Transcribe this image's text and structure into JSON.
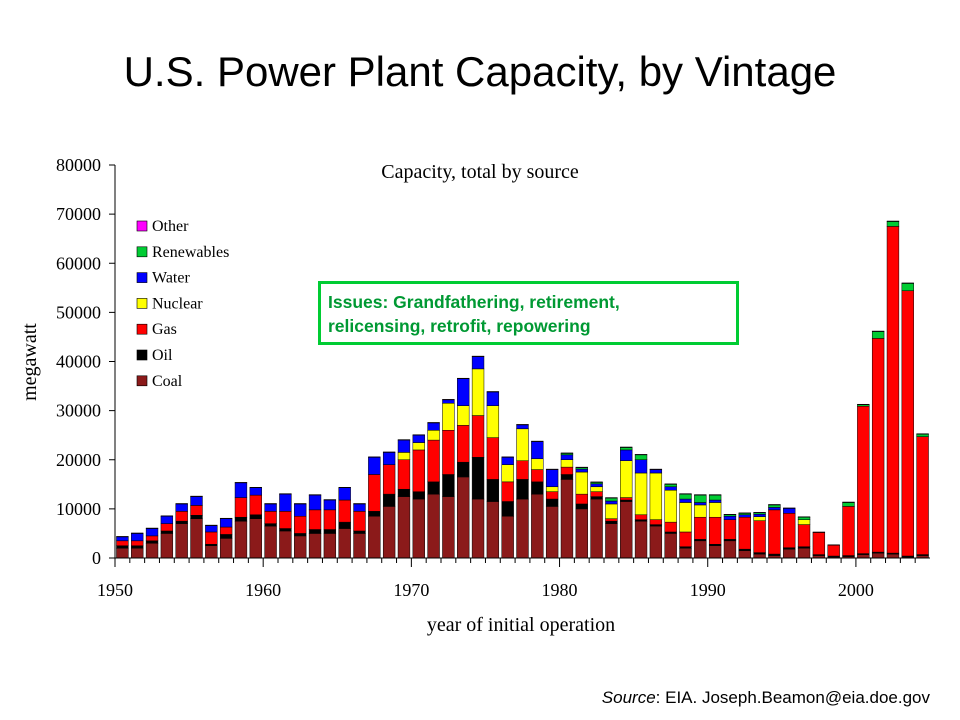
{
  "slide": {
    "title": "U.S. Power Plant Capacity, by Vintage",
    "source_label": "Source",
    "source_text": ": EIA. Joseph.Beamon@eia.doe.gov",
    "callout": [
      "Issues: Grandfathering, retirement,",
      "relicensing, retrofit, repowering"
    ]
  },
  "chart_data": {
    "type": "bar",
    "stacked": true,
    "title": "Capacity, total by source",
    "xlabel": "year of initial operation",
    "ylabel": "megawatt",
    "ylim": [
      0,
      80000
    ],
    "yticks": [
      0,
      10000,
      20000,
      30000,
      40000,
      50000,
      60000,
      70000,
      80000
    ],
    "xticks": [
      1950,
      1960,
      1970,
      1980,
      1990,
      2000
    ],
    "grid": false,
    "legend": "top-left",
    "x": [
      1950,
      1951,
      1952,
      1953,
      1954,
      1955,
      1956,
      1957,
      1958,
      1959,
      1960,
      1961,
      1962,
      1963,
      1964,
      1965,
      1966,
      1967,
      1968,
      1969,
      1970,
      1971,
      1972,
      1973,
      1974,
      1975,
      1976,
      1977,
      1978,
      1979,
      1980,
      1981,
      1982,
      1983,
      1984,
      1985,
      1986,
      1987,
      1988,
      1989,
      1990,
      1991,
      1992,
      1993,
      1994,
      1995,
      1996,
      1997,
      1998,
      1999,
      2000,
      2001,
      2002,
      2003,
      2004
    ],
    "series": [
      {
        "name": "Coal",
        "color": "#8b1a1a",
        "values": [
          2000,
          2000,
          3000,
          5000,
          7000,
          8000,
          2500,
          4000,
          7500,
          8000,
          6500,
          5500,
          4500,
          5000,
          5000,
          6000,
          5000,
          8500,
          10500,
          12500,
          12000,
          13000,
          12500,
          16500,
          12000,
          11500,
          8500,
          12000,
          13000,
          10500,
          16000,
          10000,
          12000,
          7000,
          11500,
          7500,
          6500,
          5000,
          2000,
          3500,
          2500,
          3500,
          1500,
          800,
          500,
          1800,
          2000,
          500,
          200,
          300,
          700,
          1000,
          800,
          200,
          500
        ]
      },
      {
        "name": "Oil",
        "color": "#000000",
        "values": [
          500,
          500,
          500,
          500,
          500,
          700,
          300,
          800,
          800,
          800,
          500,
          500,
          500,
          800,
          800,
          1300,
          500,
          1000,
          2500,
          1500,
          1500,
          2500,
          4500,
          3000,
          8500,
          4500,
          3000,
          4000,
          2500,
          1500,
          1000,
          1000,
          500,
          500,
          300,
          300,
          300,
          300,
          300,
          300,
          300,
          300,
          300,
          300,
          300,
          300,
          300,
          200,
          200,
          200,
          200,
          200,
          200,
          200,
          200
        ]
      },
      {
        "name": "Gas",
        "color": "#ff0000",
        "values": [
          1000,
          1000,
          1000,
          1500,
          2000,
          2000,
          2500,
          1500,
          4000,
          4000,
          2500,
          3500,
          3500,
          4000,
          4000,
          4500,
          4000,
          7500,
          6000,
          6000,
          8500,
          8500,
          9000,
          7500,
          8500,
          8500,
          4000,
          3800,
          2500,
          1500,
          1500,
          2000,
          1000,
          500,
          500,
          1000,
          1000,
          2000,
          3000,
          4500,
          5500,
          4000,
          6500,
          6500,
          9000,
          7000,
          4500,
          4500,
          2200,
          10000,
          30000,
          43500,
          66500,
          54000,
          24000
        ]
      },
      {
        "name": "Nuclear",
        "color": "#ffff00",
        "values": [
          0,
          0,
          0,
          0,
          0,
          0,
          0,
          0,
          0,
          0,
          0,
          0,
          0,
          0,
          0,
          0,
          0,
          0,
          0,
          1500,
          1500,
          2000,
          5500,
          4000,
          9500,
          6500,
          3500,
          6500,
          2200,
          1000,
          1500,
          4500,
          1000,
          3000,
          7500,
          8500,
          9500,
          6500,
          6000,
          2500,
          3000,
          0,
          0,
          800,
          0,
          0,
          1000,
          0,
          0,
          0,
          0,
          0,
          0,
          0,
          0
        ]
      },
      {
        "name": "Water",
        "color": "#0000ff",
        "values": [
          800,
          1500,
          1500,
          1500,
          1500,
          1800,
          1300,
          1700,
          3000,
          1500,
          1500,
          3500,
          2500,
          3000,
          2000,
          2500,
          1500,
          3500,
          2500,
          2500,
          1500,
          1500,
          700,
          5500,
          2500,
          2800,
          1500,
          800,
          3500,
          3500,
          1000,
          600,
          600,
          600,
          2200,
          2700,
          700,
          700,
          700,
          500,
          500,
          700,
          500,
          500,
          500,
          1000,
          0,
          0,
          0,
          0,
          0,
          0,
          0,
          0,
          0
        ]
      },
      {
        "name": "Renewables",
        "color": "#00cc33",
        "values": [
          0,
          0,
          0,
          0,
          0,
          0,
          0,
          0,
          0,
          0,
          0,
          0,
          0,
          0,
          0,
          0,
          0,
          0,
          0,
          0,
          0,
          0,
          0,
          0,
          0,
          0,
          0,
          0,
          0,
          0,
          300,
          300,
          300,
          600,
          500,
          1000,
          0,
          500,
          1000,
          1500,
          1000,
          300,
          300,
          300,
          500,
          0,
          500,
          0,
          0,
          800,
          300,
          1400,
          1000,
          1500,
          500
        ]
      },
      {
        "name": "Other",
        "color": "#ff00ff",
        "values": [
          100,
          100,
          100,
          100,
          100,
          100,
          100,
          100,
          100,
          100,
          100,
          100,
          100,
          100,
          100,
          100,
          100,
          100,
          100,
          100,
          100,
          100,
          100,
          100,
          100,
          100,
          100,
          100,
          100,
          100,
          100,
          100,
          100,
          100,
          100,
          100,
          100,
          100,
          100,
          100,
          100,
          100,
          100,
          100,
          100,
          100,
          100,
          100,
          100,
          100,
          100,
          100,
          100,
          100,
          100
        ]
      }
    ]
  }
}
